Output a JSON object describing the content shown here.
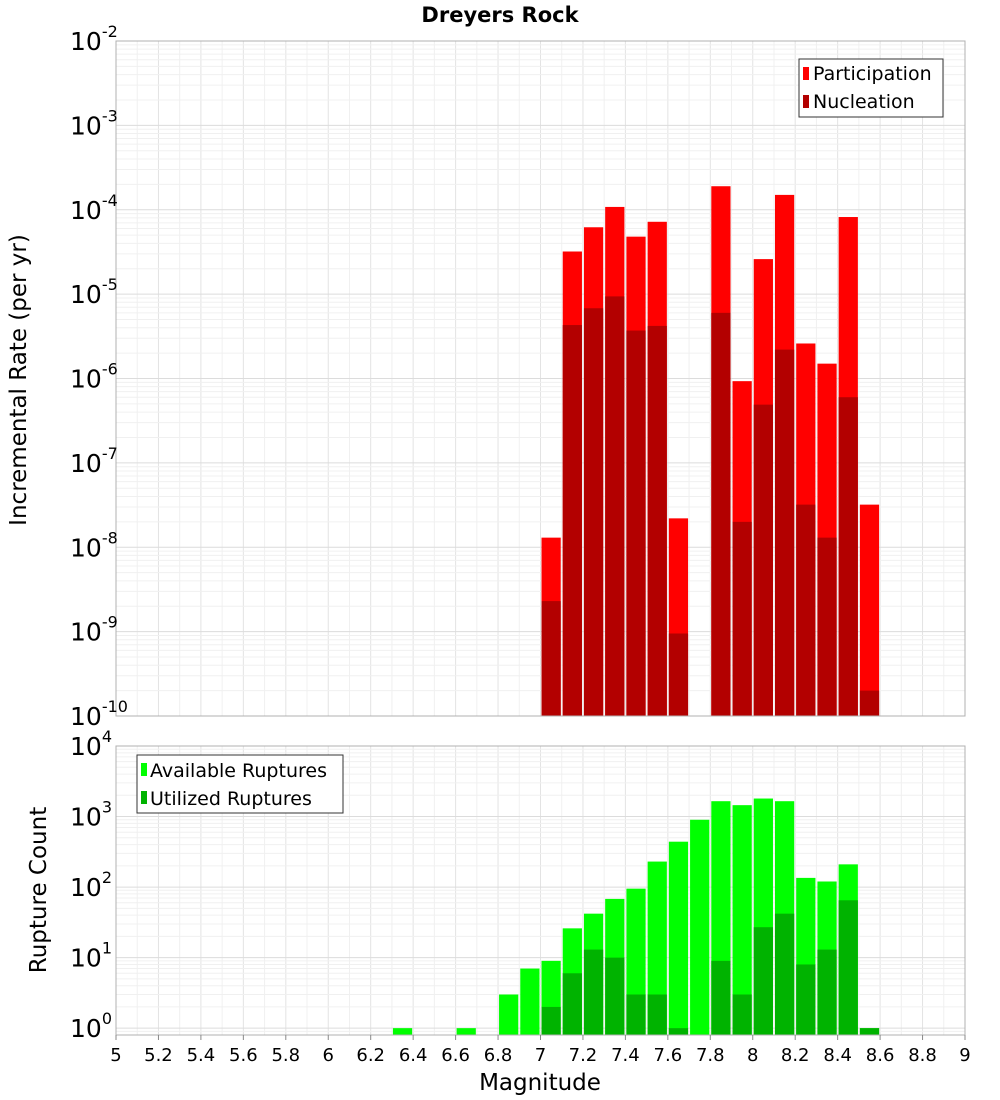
{
  "chart_data": [
    {
      "type": "bar",
      "title": "Dreyers Rock",
      "xlabel": "",
      "ylabel": "Incremental Rate (per yr)",
      "yscale": "log",
      "ylim": [
        1e-10,
        0.01
      ],
      "xlim": [
        5,
        9
      ],
      "y_tick_exponents": [
        "-2",
        "-3",
        "-4",
        "-5",
        "-6",
        "-7",
        "-8",
        "-9",
        "-10"
      ],
      "y_tick_base": "10",
      "legend": "top-right",
      "grid": true,
      "x": [
        7.05,
        7.15,
        7.25,
        7.35,
        7.45,
        7.55,
        7.65,
        7.85,
        7.95,
        8.05,
        8.15,
        8.25,
        8.35,
        8.45,
        8.55
      ],
      "series": [
        {
          "name": "Participation",
          "color": "#ff0000",
          "values": [
            1.3e-08,
            3.2e-05,
            6.2e-05,
            0.000108,
            4.8e-05,
            7.2e-05,
            2.2e-08,
            0.00019,
            9.3e-07,
            2.6e-05,
            0.00015,
            2.6e-06,
            1.5e-06,
            8.2e-05,
            3.2e-08
          ]
        },
        {
          "name": "Nucleation",
          "color": "#b30000",
          "values": [
            2.3e-09,
            4.3e-06,
            6.8e-06,
            9.4e-06,
            3.7e-06,
            4.2e-06,
            9.5e-10,
            6e-06,
            2e-08,
            4.9e-07,
            2.2e-06,
            3.2e-08,
            1.3e-08,
            6e-07,
            2e-10
          ]
        }
      ]
    },
    {
      "type": "bar",
      "title": "",
      "xlabel": "Magnitude",
      "ylabel": "Rupture Count",
      "yscale": "log",
      "ylim": [
        0.8,
        10000
      ],
      "xlim": [
        5,
        9
      ],
      "x_ticks": [
        "5",
        "5.2",
        "5.4",
        "5.6",
        "5.8",
        "6",
        "6.2",
        "6.4",
        "6.6",
        "6.8",
        "7",
        "7.2",
        "7.4",
        "7.6",
        "7.8",
        "8",
        "8.2",
        "8.4",
        "8.6",
        "8.8",
        "9"
      ],
      "y_tick_exponents": [
        "4",
        "3",
        "2",
        "1",
        "0"
      ],
      "y_tick_base": "10",
      "legend": "top-left",
      "grid": true,
      "x": [
        6.35,
        6.65,
        6.85,
        6.95,
        7.05,
        7.15,
        7.25,
        7.35,
        7.45,
        7.55,
        7.65,
        7.75,
        7.85,
        7.95,
        8.05,
        8.15,
        8.25,
        8.35,
        8.45,
        8.55
      ],
      "series": [
        {
          "name": "Available Ruptures",
          "color": "#00ff00",
          "values": [
            1,
            1,
            3,
            7,
            9,
            26,
            42,
            68,
            95,
            230,
            440,
            900,
            1650,
            1450,
            1800,
            1650,
            135,
            120,
            210,
            1
          ]
        },
        {
          "name": "Utilized Ruptures",
          "color": "#00b300",
          "values": [
            0,
            0,
            0,
            0,
            2,
            6,
            13,
            10,
            3,
            3,
            1,
            0,
            9,
            3,
            27,
            42,
            8,
            13,
            65,
            1
          ]
        }
      ]
    }
  ]
}
